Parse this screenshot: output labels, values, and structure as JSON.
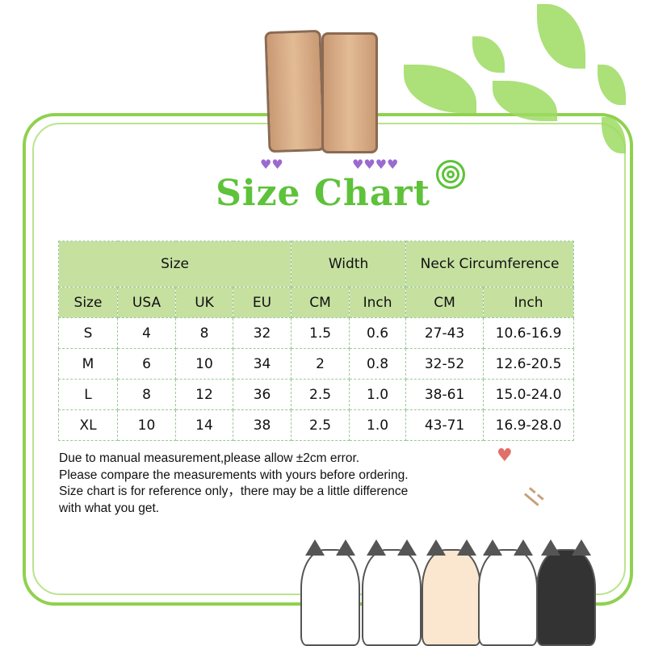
{
  "title": "Size Chart",
  "table": {
    "group_headers": [
      "Size",
      "Width",
      "Neck Circumference"
    ],
    "columns": [
      "Size",
      "USA",
      "UK",
      "EU",
      "CM",
      "Inch",
      "CM",
      "Inch"
    ],
    "rows": [
      [
        "S",
        "4",
        "8",
        "32",
        "1.5",
        "0.6",
        "27-43",
        "10.6-16.9"
      ],
      [
        "M",
        "6",
        "10",
        "34",
        "2",
        "0.8",
        "32-52",
        "12.6-20.5"
      ],
      [
        "L",
        "8",
        "12",
        "36",
        "2.5",
        "1.0",
        "38-61",
        "15.0-24.0"
      ],
      [
        "XL",
        "10",
        "14",
        "38",
        "2.5",
        "1.0",
        "43-71",
        "16.9-28.0"
      ]
    ]
  },
  "notes": [
    "Due to manual measurement,please allow ±2cm error.",
    "Please compare the measurements with yours before ordering.",
    "Size chart is for reference only，there may be a little difference",
    "with what you get."
  ],
  "colors": {
    "title": "#5ec23a",
    "header_bg": "#c6e0a0",
    "frame": "#8fd14f",
    "hearts": "#9a6ad0"
  }
}
